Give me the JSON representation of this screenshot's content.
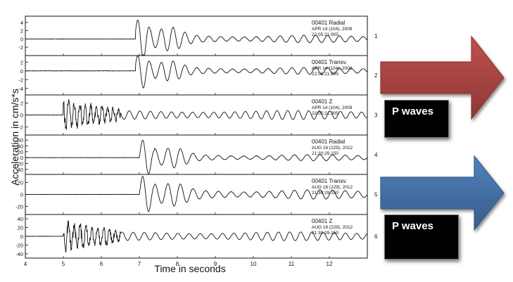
{
  "chart_data": {
    "type": "line",
    "xlabel": "Time in seconds",
    "ylabel": "Acceleration in cm/s*s",
    "xlim": [
      4,
      13
    ],
    "x_ticks": [
      "4",
      "5",
      "6",
      "7",
      "8",
      "9",
      "10",
      "11",
      "12"
    ],
    "panels": [
      {
        "id": "1",
        "label_line1": "00401  Radial",
        "label_line2": "APR 14 (104), 2009",
        "label_line3": "22:05:21.905",
        "y_ticks": [
          "4",
          "2",
          "0",
          "-2"
        ],
        "ylim": [
          -3.5,
          5
        ],
        "onset_s": 6.9,
        "peak": 4.5,
        "onset_amp": 0.1,
        "coda_amp": 0.7,
        "freq_hz": 3.2
      },
      {
        "id": "2",
        "label_line1": "00401  Transv.",
        "label_line2": "APR 14 (104), 2009",
        "label_line3": "22:05:21.905",
        "y_ticks": [
          "2",
          "0",
          "-2",
          "-4"
        ],
        "ylim": [
          -5,
          3
        ],
        "onset_s": 6.9,
        "peak": 3.4,
        "onset_amp": 0.1,
        "coda_amp": 0.6,
        "freq_hz": 3.2
      },
      {
        "id": "3",
        "label_line1": "00401  Z",
        "label_line2": "APR 14 (104), 2009",
        "label_line3": "22:05:21.905",
        "y_ticks": [
          "2",
          "0",
          "-2"
        ],
        "ylim": [
          -3,
          3
        ],
        "onset_s": 5.0,
        "peak": 2.6,
        "onset_amp": 2.4,
        "coda_amp": 0.6,
        "freq_hz": 3.6
      },
      {
        "id": "4",
        "label_line1": "00401  Radial",
        "label_line2": "AUG 16 (229), 2012",
        "label_line3": "21:30:29.150",
        "y_ticks": [
          "60",
          "40",
          "20",
          "0",
          "-20",
          "-40"
        ],
        "ylim": [
          -50,
          70
        ],
        "onset_s": 7.0,
        "peak": 55,
        "onset_amp": 2,
        "coda_amp": 8,
        "freq_hz": 3.0
      },
      {
        "id": "5",
        "label_line1": "00401  Transv.",
        "label_line2": "AUG 16 (229), 2012",
        "label_line3": "21:30:29.150",
        "y_ticks": [
          "20",
          "0",
          "-20"
        ],
        "ylim": [
          -30,
          30
        ],
        "onset_s": 7.0,
        "peak": 26,
        "onset_amp": 1,
        "coda_amp": 6,
        "freq_hz": 3.0
      },
      {
        "id": "6",
        "label_line1": "00401  Z",
        "label_line2": "AUG 16 (229), 2012",
        "label_line3": "21:30:29.150",
        "y_ticks": [
          "40",
          "20",
          "0",
          "-20",
          "-40"
        ],
        "ylim": [
          -45,
          45
        ],
        "onset_s": 5.0,
        "peak": 38,
        "onset_amp": 32,
        "coda_amp": 8,
        "freq_hz": 3.4
      }
    ]
  },
  "callouts": [
    {
      "label": "P waves",
      "arrow_color": "#c0504d",
      "border_color": "#8c3735"
    },
    {
      "label": "P waves",
      "arrow_color": "#4f81bd",
      "border_color": "#385d8a"
    }
  ]
}
